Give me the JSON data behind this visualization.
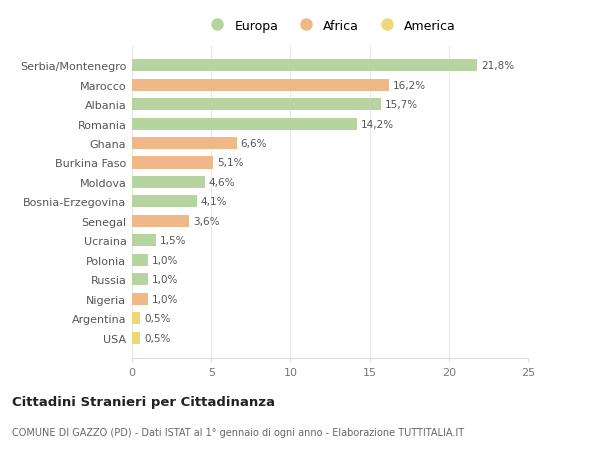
{
  "categories": [
    "Serbia/Montenegro",
    "Marocco",
    "Albania",
    "Romania",
    "Ghana",
    "Burkina Faso",
    "Moldova",
    "Bosnia-Erzegovina",
    "Senegal",
    "Ucraina",
    "Polonia",
    "Russia",
    "Nigeria",
    "Argentina",
    "USA"
  ],
  "values": [
    21.8,
    16.2,
    15.7,
    14.2,
    6.6,
    5.1,
    4.6,
    4.1,
    3.6,
    1.5,
    1.0,
    1.0,
    1.0,
    0.5,
    0.5
  ],
  "labels": [
    "21,8%",
    "16,2%",
    "15,7%",
    "14,2%",
    "6,6%",
    "5,1%",
    "4,6%",
    "4,1%",
    "3,6%",
    "1,5%",
    "1,0%",
    "1,0%",
    "1,0%",
    "0,5%",
    "0,5%"
  ],
  "colors": [
    "#b5d4a0",
    "#f0b888",
    "#b5d4a0",
    "#b5d4a0",
    "#f0b888",
    "#f0b888",
    "#b5d4a0",
    "#b5d4a0",
    "#f0b888",
    "#b5d4a0",
    "#b5d4a0",
    "#b5d4a0",
    "#f0b888",
    "#f0d878",
    "#f0d878"
  ],
  "legend_labels": [
    "Europa",
    "Africa",
    "America"
  ],
  "legend_colors": [
    "#b5d4a0",
    "#f0b888",
    "#f0d878"
  ],
  "title": "Cittadini Stranieri per Cittadinanza",
  "subtitle": "COMUNE DI GAZZO (PD) - Dati ISTAT al 1° gennaio di ogni anno - Elaborazione TUTTITALIA.IT",
  "xlim": [
    0,
    25
  ],
  "xticks": [
    0,
    5,
    10,
    15,
    20,
    25
  ],
  "background_color": "#ffffff",
  "grid_color": "#e8e8e8",
  "bar_height": 0.62
}
